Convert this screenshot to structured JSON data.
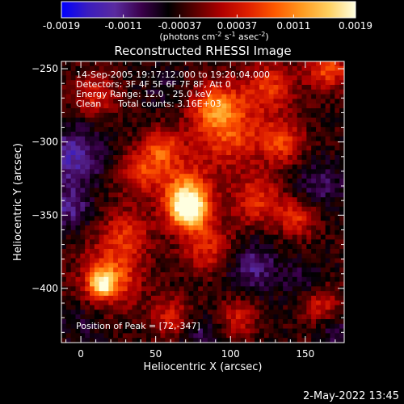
{
  "colorbar": {
    "tick_labels": [
      "-0.0019",
      "-0.0011",
      "-0.00037",
      "0.00037",
      "0.0011",
      "0.0019"
    ],
    "tick_values": [
      -0.0019,
      -0.0011,
      -0.00037,
      0.00037,
      0.0011,
      0.0019
    ],
    "unit_main": "(photons cm",
    "unit_sup1": "-2",
    "unit_mid": " s",
    "unit_sup2": "-1",
    "unit_mid2": " asec",
    "unit_sup3": "-2",
    "unit_end": ")",
    "range": [
      -0.0019,
      0.0019
    ],
    "colors": [
      "#0000ff",
      "#3b1dbe",
      "#5a2b9f",
      "#3a004a",
      "#000000",
      "#5a0000",
      "#b00000",
      "#e02000",
      "#ff5a00",
      "#ff9a20",
      "#ffd060",
      "#ffffe0"
    ]
  },
  "chart_data": {
    "type": "heatmap",
    "title": "Reconstructed RHESSI Image",
    "xlabel": "Heliocentric X (arcsec)",
    "ylabel": "Heliocentric Y (arcsec)",
    "xlim": [
      -13,
      176
    ],
    "ylim": [
      -437,
      -245
    ],
    "x_ticks": [
      0,
      50,
      100,
      150
    ],
    "y_ticks": [
      -250,
      -300,
      -350,
      -400
    ],
    "x_tick_labels": [
      "0",
      "50",
      "100",
      "150"
    ],
    "y_tick_labels": [
      "−250",
      "−300",
      "−350",
      "−400"
    ],
    "peak": [
      72,
      -347
    ],
    "peak_value": 0.0019,
    "background_level": -0.00037,
    "bright_regions": [
      {
        "x": 72,
        "y": -347,
        "sigma": 9,
        "value": 0.0019
      },
      {
        "x": 70,
        "y": -333,
        "sigma": 12,
        "value": 0.0009
      },
      {
        "x": 98,
        "y": -292,
        "sigma": 18,
        "value": 0.00075
      },
      {
        "x": 90,
        "y": -274,
        "sigma": 10,
        "value": 0.0006
      },
      {
        "x": 126,
        "y": -262,
        "sigma": 12,
        "value": 0.0005
      },
      {
        "x": 165,
        "y": -250,
        "sigma": 10,
        "value": 0.0007
      },
      {
        "x": 20,
        "y": -392,
        "sigma": 14,
        "value": 0.0008
      },
      {
        "x": 14,
        "y": -397,
        "sigma": 6,
        "value": 0.0011
      },
      {
        "x": 55,
        "y": -305,
        "sigma": 9,
        "value": 0.00065
      },
      {
        "x": 40,
        "y": -320,
        "sigma": 11,
        "value": 0.00055
      },
      {
        "x": 118,
        "y": -340,
        "sigma": 12,
        "value": 0.00055
      },
      {
        "x": 145,
        "y": -352,
        "sigma": 9,
        "value": 0.0005
      },
      {
        "x": 30,
        "y": -362,
        "sigma": 12,
        "value": 0.00045
      },
      {
        "x": 85,
        "y": -372,
        "sigma": 12,
        "value": 0.0005
      },
      {
        "x": 135,
        "y": -300,
        "sigma": 10,
        "value": 0.0006
      },
      {
        "x": 60,
        "y": -420,
        "sigma": 10,
        "value": 0.0004
      },
      {
        "x": 160,
        "y": -410,
        "sigma": 9,
        "value": 0.0004
      },
      {
        "x": 10,
        "y": -268,
        "sigma": 10,
        "value": 0.00045
      },
      {
        "x": 105,
        "y": -420,
        "sigma": 9,
        "value": 0.00035
      }
    ],
    "dark_regions": [
      {
        "x": -5,
        "y": -310,
        "sigma": 14,
        "value": -0.0013
      },
      {
        "x": -8,
        "y": -345,
        "sigma": 10,
        "value": -0.0011
      },
      {
        "x": 160,
        "y": -330,
        "sigma": 12,
        "value": -0.0009
      },
      {
        "x": 115,
        "y": -385,
        "sigma": 12,
        "value": -0.0011
      },
      {
        "x": 150,
        "y": -395,
        "sigma": 10,
        "value": -0.0008
      },
      {
        "x": 55,
        "y": -262,
        "sigma": 9,
        "value": -0.0007
      },
      {
        "x": 80,
        "y": -432,
        "sigma": 10,
        "value": -0.0009
      },
      {
        "x": 170,
        "y": -430,
        "sigma": 8,
        "value": -0.0008
      },
      {
        "x": 0,
        "y": -425,
        "sigma": 10,
        "value": -0.0007
      }
    ]
  },
  "annotations": {
    "line1": "14-Sep-2005 19:17:12.000 to 19:20:04.000",
    "line2": "Detectors: 3F 4F 5F 6F 7F 8F, Att 0",
    "line3": "Energy Range: 12.0 - 25.0 keV",
    "line4_a": "Clean",
    "line4_b": "Total counts: 3.16E+03",
    "peak_label": "Position of Peak = [72,-347]"
  },
  "footer": {
    "timestamp": "2-May-2022 13:45"
  }
}
